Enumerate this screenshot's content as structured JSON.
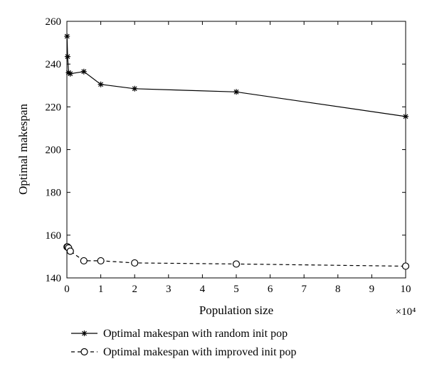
{
  "chart_data": {
    "type": "line",
    "xlabel": "Population size",
    "ylabel": "Optimal makespan",
    "x_multiplier_label": "×10⁴",
    "xlim": [
      0,
      10
    ],
    "ylim": [
      140,
      260
    ],
    "x_ticks": [
      "0",
      "1",
      "2",
      "3",
      "4",
      "5",
      "6",
      "7",
      "8",
      "9",
      "10"
    ],
    "y_ticks": [
      "140",
      "160",
      "180",
      "200",
      "220",
      "240",
      "260"
    ],
    "grid": false,
    "legend_position": "bottom",
    "series": [
      {
        "name": "Optimal makespan with random init pop",
        "marker": "star",
        "line_style": "solid",
        "x": [
          0.005,
          0.02,
          0.05,
          0.1,
          0.5,
          1,
          2,
          5,
          10
        ],
        "y": [
          253,
          243.5,
          236,
          235.5,
          236.5,
          230.5,
          228.5,
          227,
          215.5
        ]
      },
      {
        "name": "Optimal makespan with improved init pop",
        "marker": "circle",
        "line_style": "dashed",
        "x": [
          0.005,
          0.02,
          0.05,
          0.1,
          0.5,
          1,
          2,
          5,
          10
        ],
        "y": [
          154.5,
          154.5,
          154,
          152.5,
          148,
          148,
          147,
          146.5,
          145.5
        ]
      }
    ]
  }
}
